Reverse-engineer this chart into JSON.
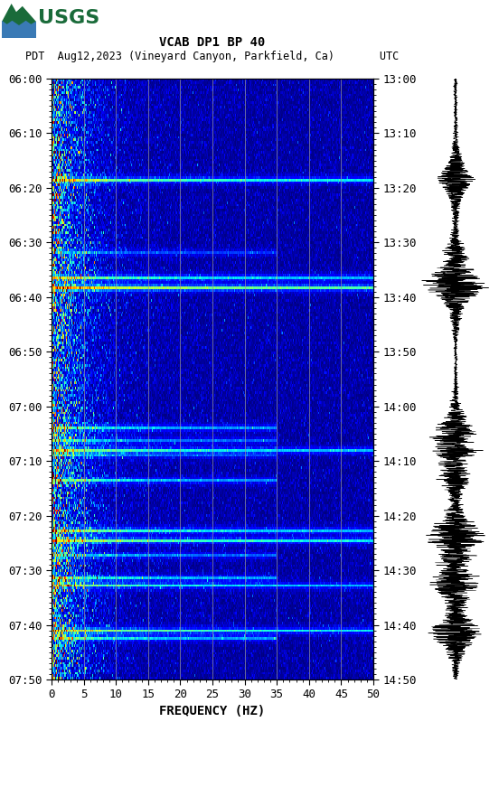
{
  "title_line1": "VCAB DP1 BP 40",
  "title_line2": "PDT  Aug12,2023 (Vineyard Canyon, Parkfield, Ca)       UTC",
  "xlabel": "FREQUENCY (HZ)",
  "left_yticks": [
    "06:00",
    "06:10",
    "06:20",
    "06:30",
    "06:40",
    "06:50",
    "07:00",
    "07:10",
    "07:20",
    "07:30",
    "07:40",
    "07:50"
  ],
  "right_yticks": [
    "13:00",
    "13:10",
    "13:20",
    "13:30",
    "13:40",
    "13:50",
    "14:00",
    "14:10",
    "14:20",
    "14:30",
    "14:40",
    "14:50"
  ],
  "xticks": [
    0,
    5,
    10,
    15,
    20,
    25,
    30,
    35,
    40,
    45,
    50
  ],
  "freq_max": 50,
  "time_steps": 240,
  "freq_steps": 400,
  "vgrid_freqs": [
    5,
    10,
    15,
    20,
    25,
    30,
    35,
    40,
    45
  ],
  "background_color": "#ffffff",
  "spectrogram_cmap": "jet",
  "title_fontsize": 11,
  "tick_fontsize": 9,
  "label_fontsize": 10,
  "usgs_logo_color": "#1a6b3a",
  "vline_color": "#999999",
  "vline_alpha": 0.8,
  "event_times_norm": [
    0.167,
    0.29,
    0.333,
    0.347,
    0.583,
    0.6,
    0.617,
    0.625,
    0.667,
    0.75,
    0.767,
    0.792,
    0.83,
    0.845,
    0.917,
    0.93
  ],
  "event_strengths": [
    7,
    3,
    6,
    9,
    5,
    4,
    6,
    3,
    5,
    6,
    7,
    4,
    5,
    6,
    7,
    5
  ]
}
